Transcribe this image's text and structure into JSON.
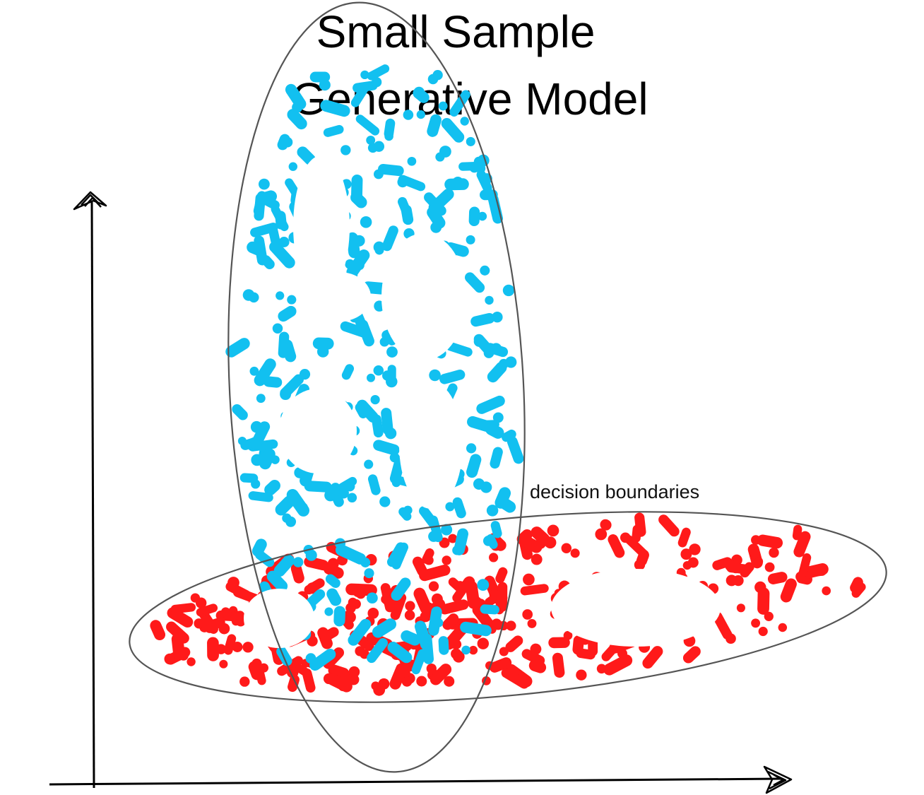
{
  "title": {
    "line1": "Small Sample",
    "line2": "Generative Model"
  },
  "annotation": {
    "boundary_label": "decision boundaries"
  },
  "colors": {
    "class_a": "#12c0f0",
    "class_b": "#ff1a1a",
    "ellipse_stroke": "#555555",
    "axis": "#000000"
  },
  "icons": {
    "y_axis_tip": "hand-drawn-arrowhead-icon",
    "x_axis_tip": "hand-drawn-arrowhead-icon"
  }
}
